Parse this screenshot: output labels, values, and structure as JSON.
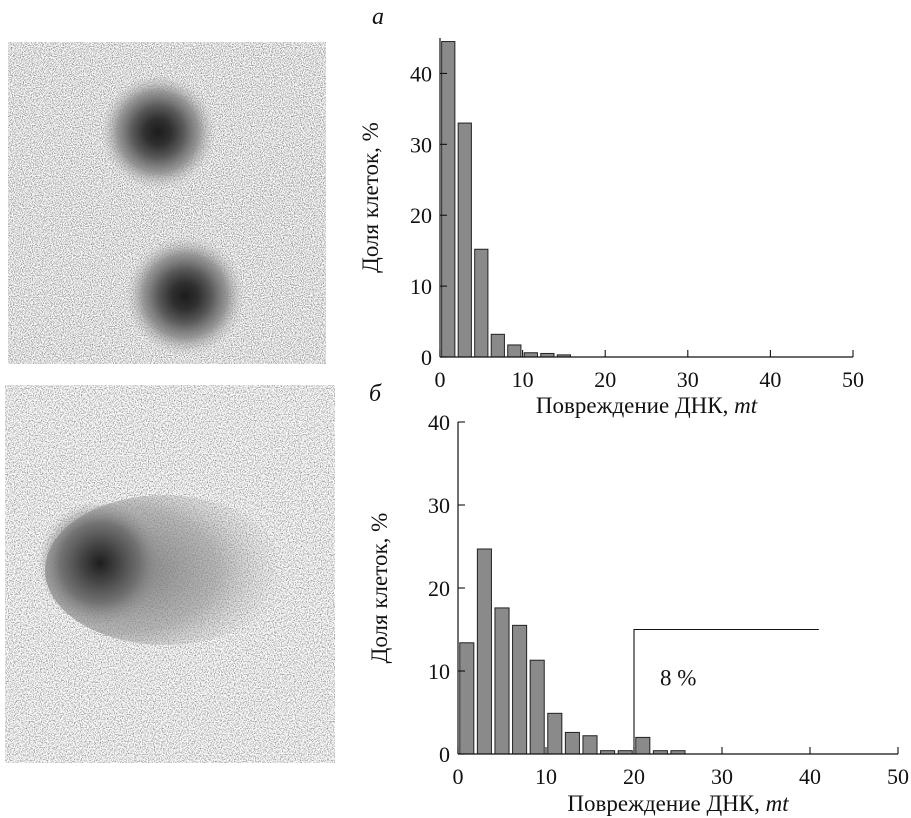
{
  "chart_data": [
    {
      "type": "bar",
      "panel_label": "а",
      "xlabel": "Повреждение ДНК, ",
      "xlabel_unit": "mt",
      "ylabel": "Доля клеток, %",
      "xlim": [
        0,
        50
      ],
      "ylim": [
        0,
        45
      ],
      "xticks": [
        "0",
        "10",
        "20",
        "30",
        "40",
        "50"
      ],
      "yticks": [
        "0",
        "10",
        "20",
        "30",
        "40"
      ],
      "bar_width": 1.6,
      "x": [
        1,
        3,
        5,
        7,
        9,
        11,
        13,
        15
      ],
      "values": [
        44.5,
        33,
        15.2,
        3.2,
        1.7,
        0.6,
        0.5,
        0.3
      ]
    },
    {
      "type": "bar",
      "panel_label": "б",
      "xlabel": "Повреждение ДНК, ",
      "xlabel_unit": "mt",
      "ylabel": "Доля клеток, %",
      "xlim": [
        0,
        50
      ],
      "ylim": [
        0,
        40
      ],
      "xticks": [
        "0",
        "10",
        "20",
        "30",
        "40",
        "50"
      ],
      "yticks": [
        "0",
        "10",
        "20",
        "30",
        "40"
      ],
      "bar_width": 1.6,
      "x": [
        1,
        3,
        5,
        7,
        9,
        11,
        13,
        15,
        17,
        19,
        21,
        23,
        25
      ],
      "values": [
        13.4,
        24.7,
        17.6,
        15.5,
        11.3,
        4.9,
        2.6,
        2.2,
        0.4,
        0.4,
        2.0,
        0.4,
        0.4
      ],
      "annotation": {
        "text": "8 %",
        "x_start": 20,
        "x_end": 41,
        "y": 15
      }
    }
  ]
}
